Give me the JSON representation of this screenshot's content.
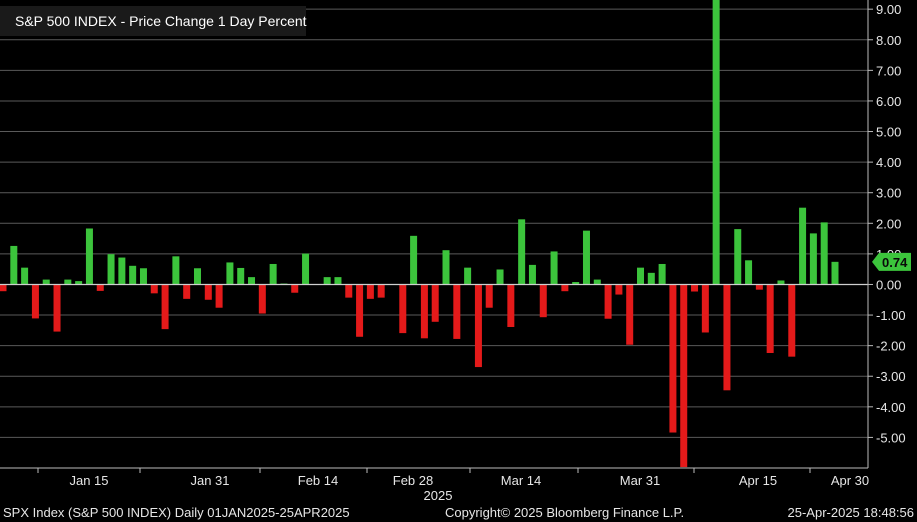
{
  "chart_data": {
    "type": "bar",
    "title": "S&P 500 INDEX - Price Change 1 Day Percent",
    "ylim": [
      -6.0,
      9.3
    ],
    "yticks": [
      "-5.00",
      "-4.00",
      "-3.00",
      "-2.00",
      "-1.00",
      "0.00",
      "1.00",
      "2.00",
      "3.00",
      "4.00",
      "5.00",
      "6.00",
      "7.00",
      "8.00",
      "9.00"
    ],
    "xtick_labels": [
      "Jan 15",
      "Jan 31",
      "Feb 14",
      "Feb 28",
      "Mar 14",
      "Mar 31",
      "Apr 15",
      "Apr 30"
    ],
    "year_label": "2025",
    "last_value_label": "0.74",
    "colors": {
      "up": "#3cc43c",
      "down": "#e41a1a",
      "last_label_bg": "#3cc43c"
    },
    "series": [
      {
        "values": [
          -0.22,
          1.26,
          0.55,
          -1.11,
          0.16,
          -1.54,
          0.16,
          0.11,
          1.83,
          -0.21,
          0.99,
          0.88,
          0.61,
          0.53,
          -0.29,
          -1.46,
          0.92,
          -0.47,
          0.53,
          -0.5,
          -0.76,
          0.72,
          0.54,
          0.24,
          -0.95,
          0.67,
          0.03,
          -0.27,
          1.01,
          0.0,
          0.24,
          0.24,
          -0.43,
          -1.71,
          -0.47,
          -0.43,
          0.01,
          -1.59,
          1.59,
          -1.76,
          -1.22,
          1.12,
          -1.78,
          0.55,
          -2.7,
          -0.76,
          0.49,
          -1.39,
          2.13,
          0.64,
          -1.07,
          1.08,
          -0.22,
          0.08,
          1.76,
          0.16,
          -1.12,
          -0.33,
          -1.97,
          0.55,
          0.38,
          0.67,
          -4.84,
          -5.97,
          -0.23,
          -1.57,
          9.52,
          -3.46,
          1.81,
          0.79,
          -0.17,
          -2.24,
          0.13,
          -2.36,
          2.51,
          1.67,
          2.03,
          0.74
        ]
      }
    ]
  },
  "footer": {
    "left": "SPX Index (S&P 500 INDEX)  Daily 01JAN2025-25APR2025",
    "center": "Copyright© 2025 Bloomberg Finance L.P.",
    "right": "25-Apr-2025 18:48:56"
  }
}
